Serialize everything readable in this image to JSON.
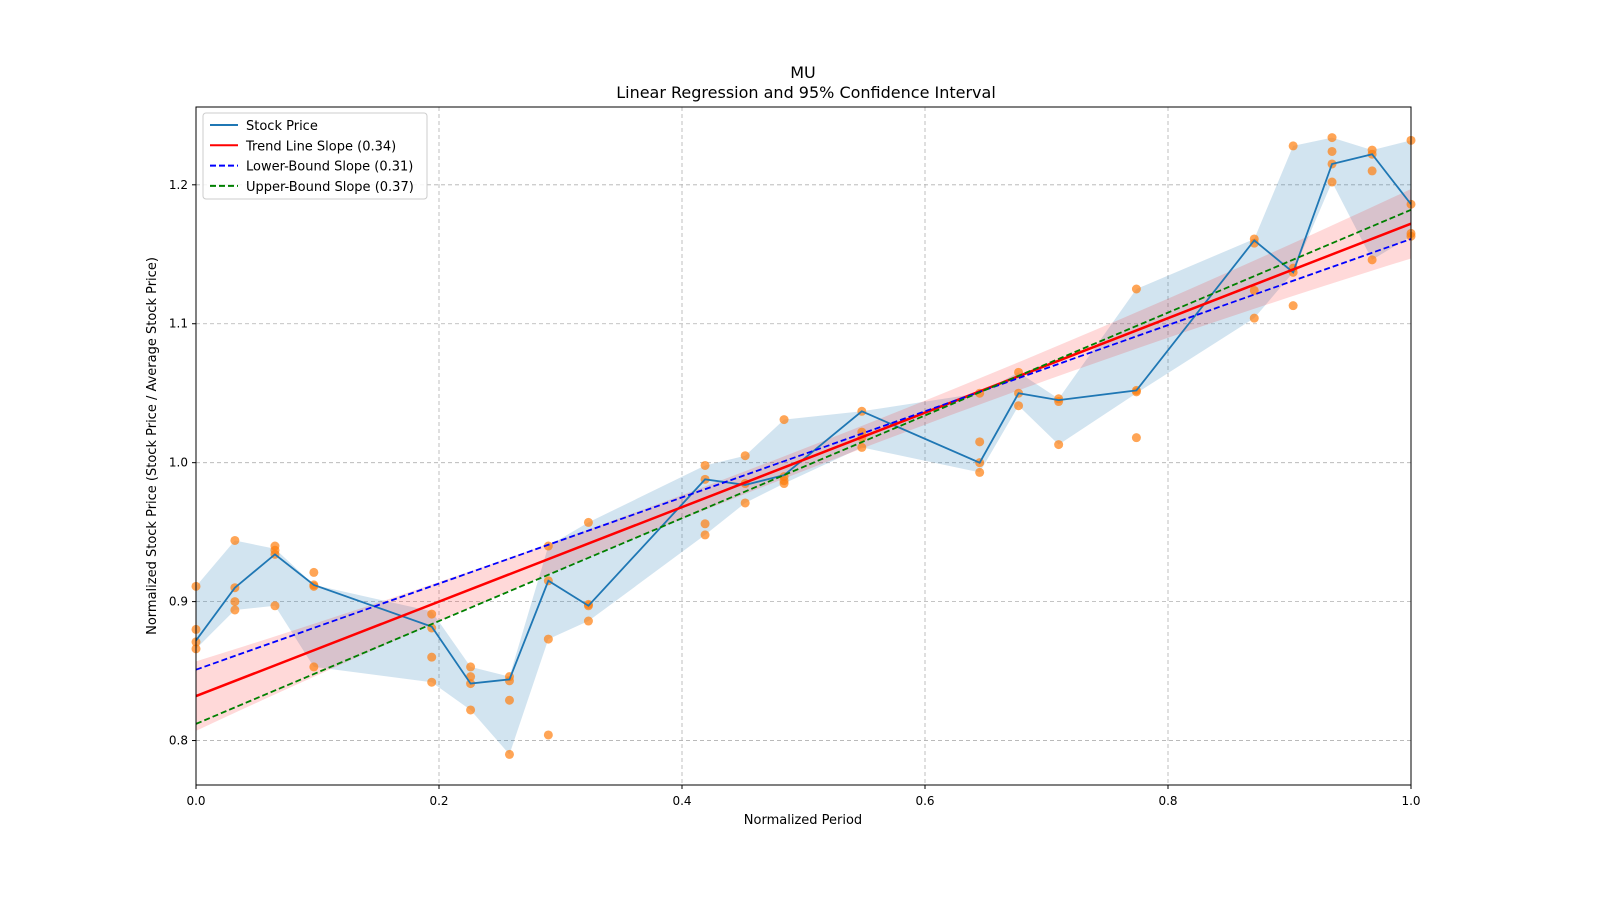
{
  "chart_data": {
    "type": "line",
    "title": "MU",
    "subtitle": "Linear Regression and 95% Confidence Interval",
    "xlabel": "Normalized Period",
    "ylabel": "Normalized Stock Price (Stock Price / Average Stock Price)",
    "xlim": [
      0,
      1
    ],
    "ylim": [
      0.768,
      1.256
    ],
    "xticks": [
      "0.0",
      "0.2",
      "0.4",
      "0.6",
      "0.8",
      "1.0"
    ],
    "xtick_values": [
      0,
      0.2,
      0.4,
      0.6,
      0.8,
      1.0
    ],
    "yticks": [
      "0.8",
      "0.9",
      "1.0",
      "1.1",
      "1.2"
    ],
    "ytick_values": [
      0.8,
      0.9,
      1.0,
      1.1,
      1.2
    ],
    "grid": true,
    "legend_position": "top-left",
    "legend": [
      {
        "label": "Stock Price",
        "color": "#1f77b4",
        "style": "solid"
      },
      {
        "label": "Trend Line Slope (0.34)",
        "color": "#ff0000",
        "style": "solid"
      },
      {
        "label": "Lower-Bound Slope (0.31)",
        "color": "#0000ff",
        "style": "dashed"
      },
      {
        "label": "Upper-Bound Slope (0.37)",
        "color": "#008000",
        "style": "dashed"
      }
    ],
    "x": [
      0,
      0.032,
      0.065,
      0.097,
      0.194,
      0.226,
      0.258,
      0.29,
      0.323,
      0.419,
      0.452,
      0.484,
      0.548,
      0.645,
      0.677,
      0.71,
      0.774,
      0.871,
      0.903,
      0.935,
      0.968,
      1.0
    ],
    "stock_price": [
      0.872,
      0.91,
      0.934,
      0.912,
      0.882,
      0.841,
      0.844,
      0.915,
      0.897,
      0.988,
      0.984,
      0.991,
      1.037,
      1.0,
      1.05,
      1.045,
      1.052,
      1.16,
      1.137,
      1.215,
      1.222,
      1.186
    ],
    "band_upper": [
      0.911,
      0.944,
      0.938,
      0.912,
      0.893,
      0.853,
      0.846,
      0.94,
      0.957,
      0.998,
      1.005,
      1.031,
      1.037,
      1.05,
      1.065,
      1.046,
      1.125,
      1.161,
      1.228,
      1.234,
      1.225,
      1.232
    ],
    "band_lower": [
      0.866,
      0.894,
      0.897,
      0.853,
      0.842,
      0.822,
      0.79,
      0.873,
      0.886,
      0.948,
      0.971,
      0.985,
      1.011,
      0.993,
      1.041,
      1.013,
      1.05,
      1.104,
      1.137,
      1.202,
      1.146,
      1.163
    ],
    "scatter": [
      [
        0.911,
        0.88,
        0.866,
        0.871
      ],
      [
        0.944,
        0.91,
        0.9,
        0.894
      ],
      [
        0.94,
        0.937,
        0.934,
        0.897
      ],
      [
        0.921,
        0.912,
        0.911,
        0.853
      ],
      [
        0.891,
        0.881,
        0.86,
        0.842
      ],
      [
        0.853,
        0.846,
        0.841,
        0.822
      ],
      [
        0.846,
        0.843,
        0.829,
        0.79
      ],
      [
        0.94,
        0.915,
        0.873,
        0.804
      ],
      [
        0.957,
        0.898,
        0.897,
        0.886
      ],
      [
        0.998,
        0.988,
        0.956,
        0.948
      ],
      [
        1.005,
        0.985,
        0.971
      ],
      [
        1.031,
        0.99,
        0.987,
        0.985
      ],
      [
        1.037,
        1.022,
        1.018,
        1.011
      ],
      [
        1.05,
        1.015,
        1.0,
        0.993
      ],
      [
        1.065,
        1.05,
        1.041
      ],
      [
        1.046,
        1.044,
        1.013
      ],
      [
        1.125,
        1.052,
        1.051,
        1.018
      ],
      [
        1.161,
        1.158,
        1.124,
        1.104
      ],
      [
        1.228,
        1.14,
        1.137,
        1.113
      ],
      [
        1.234,
        1.224,
        1.215,
        1.202
      ],
      [
        1.225,
        1.222,
        1.21,
        1.146
      ],
      [
        1.232,
        1.186,
        1.165,
        1.163
      ]
    ],
    "trend": {
      "intercept": 0.832,
      "slope": 0.34
    },
    "lower_bound": {
      "intercept": 0.851,
      "slope": 0.31
    },
    "upper_bound": {
      "intercept": 0.812,
      "slope": 0.37
    },
    "ci_halfwidth_ends": 0.025,
    "ci_halfwidth_mid": 0.008,
    "colors": {
      "band": "#1f77b4",
      "scatter": "#ff7f0e",
      "ci": "#ff0000"
    }
  }
}
